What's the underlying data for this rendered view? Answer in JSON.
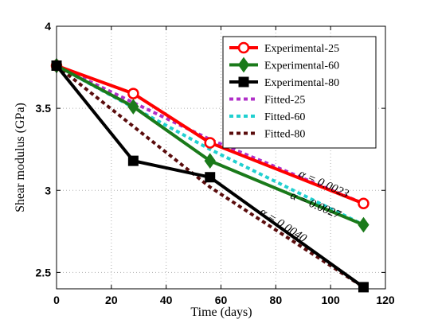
{
  "chart_data": {
    "type": "line",
    "title": "",
    "xlabel": "Time (days)",
    "ylabel": "Shear modulus (GPa)",
    "xlim": [
      0,
      120
    ],
    "ylim": [
      2.4,
      4.0
    ],
    "xticks": [
      0,
      20,
      40,
      60,
      80,
      100,
      120
    ],
    "yticks": [
      2.5,
      3,
      3.5,
      4
    ],
    "ytick_labels": [
      "2.5",
      "3",
      "3.5",
      "4"
    ],
    "grid": true,
    "legend_position": "top-right",
    "series": [
      {
        "name": "Experimental-25",
        "x": [
          0,
          28,
          56,
          112
        ],
        "y": [
          3.76,
          3.59,
          3.29,
          2.92
        ],
        "color": "#ff0000",
        "style": "solid",
        "marker": "circle"
      },
      {
        "name": "Experimental-60",
        "x": [
          0,
          28,
          56,
          112
        ],
        "y": [
          3.76,
          3.51,
          3.18,
          2.79
        ],
        "color": "#1a7a1a",
        "style": "solid",
        "marker": "diamond"
      },
      {
        "name": "Experimental-80",
        "x": [
          0,
          28,
          56,
          112
        ],
        "y": [
          3.76,
          3.18,
          3.08,
          2.41
        ],
        "color": "#000000",
        "style": "solid",
        "marker": "square"
      },
      {
        "name": "Fitted-25",
        "x": [
          0,
          56,
          112
        ],
        "y": [
          3.76,
          3.31,
          2.92
        ],
        "color": "#b02fc8",
        "style": "dashed",
        "marker": "none"
      },
      {
        "name": "Fitted-60",
        "x": [
          0,
          56,
          112
        ],
        "y": [
          3.76,
          3.25,
          2.79
        ],
        "color": "#20d0d0",
        "style": "dashed",
        "marker": "none"
      },
      {
        "name": "Fitted-80",
        "x": [
          0,
          56,
          112
        ],
        "y": [
          3.76,
          3.02,
          2.41
        ],
        "color": "#5a0c0c",
        "style": "dashed",
        "marker": "none"
      }
    ],
    "annotations": [
      {
        "text": "α = 0.0023",
        "x": 97,
        "y": 3.02
      },
      {
        "text": "α = 0.0027",
        "x": 94,
        "y": 2.89
      },
      {
        "text": "α = 0.0040",
        "x": 82,
        "y": 2.77
      }
    ]
  }
}
